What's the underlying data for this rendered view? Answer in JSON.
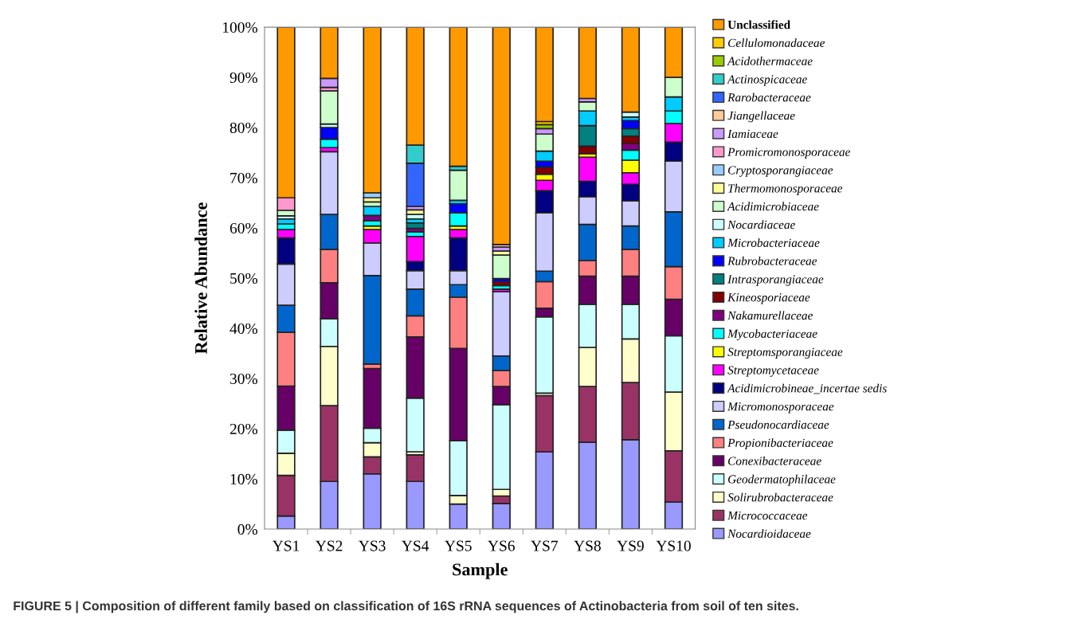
{
  "chart_data": {
    "type": "bar",
    "stacked": true,
    "xlabel": "Sample",
    "ylabel": "Relative Abundance",
    "categories": [
      "YS1",
      "YS2",
      "YS3",
      "YS4",
      "YS5",
      "YS6",
      "YS7",
      "YS8",
      "YS9",
      "YS10"
    ],
    "ylim": [
      0,
      100
    ],
    "yticks": [
      {
        "value": 0,
        "label": "0%"
      },
      {
        "value": 10,
        "label": "10%"
      },
      {
        "value": 20,
        "label": "20%"
      },
      {
        "value": 30,
        "label": "30%"
      },
      {
        "value": 40,
        "label": "40%"
      },
      {
        "value": 50,
        "label": "50%"
      },
      {
        "value": 60,
        "label": "60%"
      },
      {
        "value": 70,
        "label": "70%"
      },
      {
        "value": 80,
        "label": "80%"
      },
      {
        "value": 90,
        "label": "90%"
      },
      {
        "value": 100,
        "label": "100%"
      }
    ],
    "grid": false,
    "legend": "right",
    "annotations": [
      "FIGURE 5 | Composition of different family based on classification of 16S rRNA sequences of Actinobacteria from soil of ten sites."
    ],
    "series": [
      {
        "name": "Nocardioidaceae",
        "color": "#9999ff",
        "values": [
          2.6,
          9.5,
          11.0,
          9.5,
          5.0,
          5.1,
          15.4,
          17.3,
          17.8,
          5.4
        ]
      },
      {
        "name": "Micrococcaceae",
        "color": "#993366",
        "values": [
          8.1,
          15.1,
          3.4,
          5.3,
          null,
          1.5,
          11.2,
          11.1,
          11.4,
          10.2
        ]
      },
      {
        "name": "Solirubrobacteraceae",
        "color": "#ffffcc",
        "values": [
          4.4,
          11.8,
          2.8,
          0.6,
          1.7,
          1.3,
          0.5,
          7.8,
          8.7,
          11.7
        ]
      },
      {
        "name": "Geodermatophilaceae",
        "color": "#ccffff",
        "values": [
          4.6,
          5.5,
          2.9,
          10.7,
          10.9,
          16.9,
          15.2,
          8.6,
          6.9,
          11.2
        ]
      },
      {
        "name": "Conexibacteraceae",
        "color": "#660066",
        "values": [
          8.8,
          7.2,
          11.9,
          12.2,
          18.4,
          3.6,
          1.7,
          5.6,
          5.6,
          7.3
        ]
      },
      {
        "name": "Propionibacteriaceae",
        "color": "#ff8080",
        "values": [
          10.7,
          6.6,
          0.9,
          4.2,
          10.2,
          3.2,
          5.3,
          3.1,
          5.3,
          6.5
        ]
      },
      {
        "name": "Pseudonocardiaceae",
        "color": "#0066cc",
        "values": [
          5.4,
          7.0,
          17.6,
          5.3,
          2.5,
          2.9,
          2.1,
          7.2,
          4.7,
          10.9
        ]
      },
      {
        "name": "Micromonosporaceae",
        "color": "#ccccff",
        "values": [
          8.2,
          12.5,
          6.5,
          3.7,
          2.8,
          12.8,
          11.6,
          5.5,
          5.0,
          10.1
        ]
      },
      {
        "name": "Acidimicrobineae_incertae sedis",
        "color": "#000080",
        "values": [
          5.2,
          null,
          null,
          1.8,
          6.5,
          null,
          4.4,
          3.1,
          3.3,
          3.8
        ]
      },
      {
        "name": "Streptomycetaceae",
        "color": "#ff00ff",
        "values": [
          1.7,
          0.8,
          2.7,
          5.0,
          1.7,
          0.5,
          2.1,
          4.8,
          2.3,
          3.7
        ]
      },
      {
        "name": "Streptomsporangiaceae",
        "color": "#ffff00",
        "values": [
          null,
          null,
          0.7,
          null,
          0.7,
          null,
          1.2,
          0.7,
          2.5,
          null
        ]
      },
      {
        "name": "Mycobacteriaceae",
        "color": "#00ffff",
        "values": [
          1.1,
          1.7,
          1.0,
          0.9,
          2.6,
          0.7,
          null,
          null,
          2.0,
          2.5
        ]
      },
      {
        "name": "Nakamurellaceae",
        "color": "#800080",
        "values": [
          null,
          null,
          1.1,
          0.7,
          null,
          null,
          null,
          null,
          1.3,
          null
        ]
      },
      {
        "name": "Kineosporiaceae",
        "color": "#800000",
        "values": [
          null,
          null,
          null,
          null,
          null,
          0.8,
          1.4,
          1.5,
          1.5,
          null
        ]
      },
      {
        "name": "Intrasporangiaceae",
        "color": "#008080",
        "values": [
          null,
          null,
          null,
          1.1,
          null,
          null,
          null,
          4.1,
          1.5,
          null
        ]
      },
      {
        "name": "Rubrobacteraceae",
        "color": "#0000ff",
        "values": [
          null,
          2.3,
          null,
          null,
          1.8,
          0.6,
          1.2,
          null,
          1.6,
          null
        ]
      },
      {
        "name": "Microbacteriaceae",
        "color": "#00ccff",
        "values": [
          1.0,
          null,
          1.8,
          0.8,
          0.7,
          null,
          2.0,
          2.9,
          0.7,
          2.8
        ]
      },
      {
        "name": "Nocardiaceae",
        "color": "#ccffff",
        "values": [
          0.6,
          0.7,
          null,
          0.9,
          null,
          null,
          null,
          null,
          1.0,
          null
        ]
      },
      {
        "name": "Acidimicrobiaceae",
        "color": "#ccffcc",
        "values": [
          1.1,
          6.6,
          0.9,
          null,
          6.0,
          4.7,
          3.4,
          1.8,
          null,
          3.9
        ]
      },
      {
        "name": "Thermomonosporaceae",
        "color": "#ffff99",
        "values": [
          null,
          null,
          0.8,
          0.9,
          null,
          0.8,
          null,
          null,
          null,
          null
        ]
      },
      {
        "name": "Cryptosporangiaceae",
        "color": "#99ccff",
        "values": [
          null,
          null,
          1.0,
          null,
          null,
          null,
          null,
          null,
          null,
          null
        ]
      },
      {
        "name": "Promicromonosporaceae",
        "color": "#ff99cc",
        "values": [
          2.5,
          0.7,
          null,
          null,
          null,
          null,
          null,
          null,
          null,
          null
        ]
      },
      {
        "name": "Iamiaceae",
        "color": "#cc99ff",
        "values": [
          null,
          1.8,
          null,
          0.7,
          null,
          0.8,
          1.1,
          0.7,
          null,
          null
        ]
      },
      {
        "name": "Jiangellaceae",
        "color": "#ffcc99",
        "values": [
          null,
          null,
          null,
          null,
          null,
          0.5,
          null,
          null,
          null,
          null
        ]
      },
      {
        "name": "Rarobacteraceae",
        "color": "#3366ff",
        "values": [
          null,
          null,
          null,
          8.6,
          null,
          null,
          null,
          null,
          null,
          null
        ]
      },
      {
        "name": "Actinospicaceae",
        "color": "#33cccc",
        "values": [
          null,
          null,
          null,
          3.6,
          0.8,
          null,
          null,
          null,
          null,
          null
        ]
      },
      {
        "name": "Acidothermaceae",
        "color": "#99cc00",
        "values": [
          null,
          null,
          null,
          null,
          null,
          null,
          0.8,
          null,
          null,
          null
        ]
      },
      {
        "name": "Cellulomonadaceae",
        "color": "#ffcc00",
        "values": [
          null,
          null,
          null,
          null,
          null,
          null,
          0.6,
          null,
          null,
          null
        ]
      },
      {
        "name": "Unclassified",
        "color": "#ff9900",
        "values": [
          34.0,
          10.2,
          33.0,
          23.5,
          27.7,
          43.3,
          18.8,
          14.2,
          16.9,
          10.0
        ]
      }
    ]
  }
}
